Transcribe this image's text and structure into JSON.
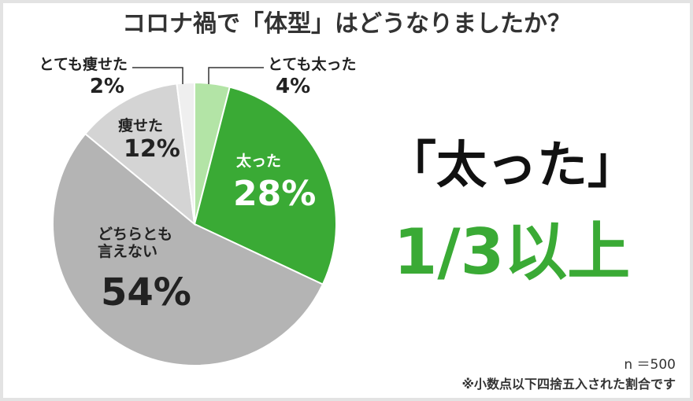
{
  "chart_data": {
    "type": "pie",
    "title": "コロナ禍で「体型」はどうなりましたか？",
    "categories": [
      "とても太った",
      "太った",
      "どちらとも言えない",
      "痩せた",
      "とても痩せた"
    ],
    "values": [
      4,
      28,
      54,
      12,
      2
    ],
    "value_labels": [
      "4%",
      "28%",
      "54%",
      "12%",
      "2%"
    ],
    "colors": [
      "#b3e4a6",
      "#3aaa35",
      "#b4b4b4",
      "#d4d4d4",
      "#efefef"
    ],
    "headline": "「太った」",
    "highlight": "1/3以上",
    "sample_size": "n ＝500",
    "note": "※小数点以下四捨五入された割合です"
  }
}
